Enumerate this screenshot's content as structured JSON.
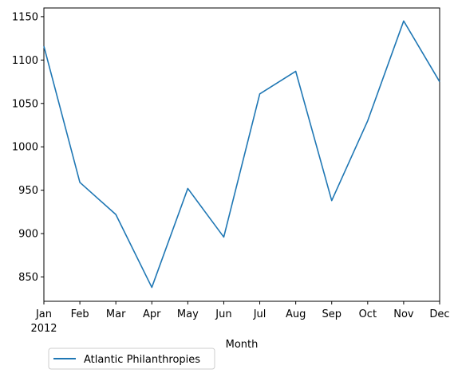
{
  "chart_data": {
    "type": "line",
    "title": "",
    "xlabel": "Month",
    "ylabel": "",
    "categories": [
      "Jan",
      "Feb",
      "Mar",
      "Apr",
      "May",
      "Jun",
      "Jul",
      "Aug",
      "Sep",
      "Oct",
      "Nov",
      "Dec"
    ],
    "year_label": "2012",
    "series": [
      {
        "name": "Atlantic Philanthropies",
        "color": "#1f77b4",
        "values": [
          1116,
          959,
          922,
          838,
          952,
          896,
          1061,
          1087,
          938,
          1030,
          1145,
          1075
        ]
      }
    ],
    "ylim": [
      822,
      1160
    ],
    "yticks": [
      850,
      900,
      950,
      1000,
      1050,
      1100,
      1150
    ],
    "grid": false,
    "legend_placement": "below-left"
  }
}
